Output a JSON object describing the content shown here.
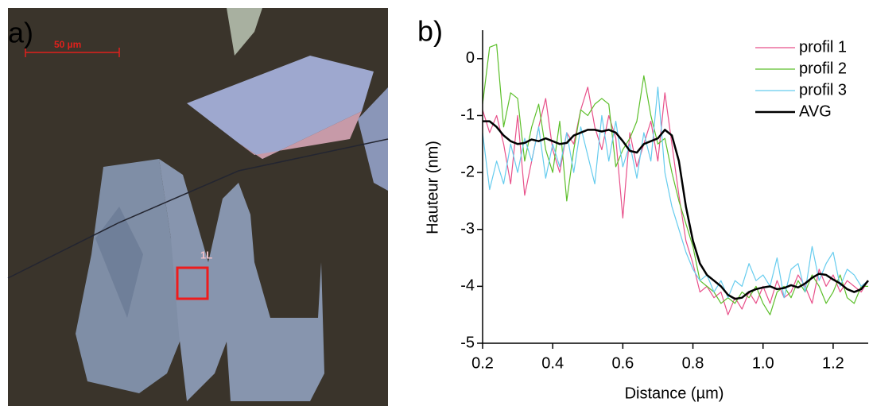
{
  "image_panel": {
    "label": "a)",
    "scale_bar": "50 µm",
    "region_label": "1L"
  },
  "chart_data": {
    "type": "line",
    "panel_label": "b)",
    "x_label": "Distance (µm)",
    "y_label": "Hauteur (nm)",
    "xlim": [
      0.2,
      1.3
    ],
    "ylim": [
      -5,
      0.5
    ],
    "xticks": [
      0.2,
      0.4,
      0.6,
      0.8,
      {
        "value": 1,
        "label": "1.0"
      },
      1.2
    ],
    "yticks": [
      0,
      -1,
      -2,
      -3,
      -4,
      -5
    ],
    "legend": "top-right",
    "x": [
      0.2,
      0.22,
      0.24,
      0.26,
      0.28,
      0.3,
      0.32,
      0.34,
      0.36,
      0.38,
      0.4,
      0.42,
      0.44,
      0.46,
      0.48,
      0.5,
      0.52,
      0.54,
      0.56,
      0.58,
      0.6,
      0.62,
      0.64,
      0.66,
      0.68,
      0.7,
      0.72,
      0.74,
      0.76,
      0.78,
      0.8,
      0.82,
      0.84,
      0.86,
      0.88,
      0.9,
      0.92,
      0.94,
      0.96,
      0.98,
      1,
      1.02,
      1.04,
      1.06,
      1.08,
      1.1,
      1.12,
      1.14,
      1.16,
      1.18,
      1.2,
      1.22,
      1.24,
      1.26,
      1.28,
      1.3
    ],
    "series": [
      {
        "name": "profil 1",
        "color": "#e8508a",
        "width": 1.2,
        "values": [
          -0.9,
          -1.3,
          -1.0,
          -1.5,
          -2.2,
          -1.0,
          -2.4,
          -1.8,
          -1.2,
          -0.7,
          -1.6,
          -2.0,
          -1.3,
          -1.5,
          -0.9,
          -0.5,
          -1.2,
          -1.6,
          -1.0,
          -1.4,
          -2.8,
          -1.3,
          -1.9,
          -1.5,
          -1.1,
          -1.8,
          -0.6,
          -1.5,
          -2.4,
          -3.2,
          -3.6,
          -4.1,
          -4.0,
          -4.2,
          -4.1,
          -4.5,
          -4.2,
          -4.4,
          -4.1,
          -4.3,
          -4.0,
          -4.3,
          -3.9,
          -4.2,
          -4.1,
          -3.8,
          -4.0,
          -4.3,
          -3.7,
          -4.0,
          -3.8,
          -4.1,
          -3.9,
          -4.0,
          -4.1,
          -3.9
        ]
      },
      {
        "name": "profil 2",
        "color": "#5cbf2a",
        "width": 1.2,
        "values": [
          -0.8,
          0.2,
          0.25,
          -1.2,
          -0.6,
          -0.7,
          -1.8,
          -1.2,
          -0.8,
          -1.6,
          -2.0,
          -1.1,
          -2.5,
          -1.6,
          -0.9,
          -1.0,
          -0.8,
          -0.7,
          -0.8,
          -1.9,
          -1.6,
          -1.4,
          -1.1,
          -0.3,
          -1.0,
          -1.5,
          -1.4,
          -2.0,
          -2.5,
          -2.9,
          -3.3,
          -3.9,
          -4.0,
          -4.1,
          -4.3,
          -4.2,
          -4.3,
          -4.1,
          -4.2,
          -4.0,
          -4.3,
          -4.5,
          -4.1,
          -4.0,
          -4.2,
          -3.9,
          -4.1,
          -3.8,
          -4.0,
          -4.3,
          -4.1,
          -3.8,
          -4.2,
          -4.3,
          -4.0,
          -4.0
        ]
      },
      {
        "name": "profil 3",
        "color": "#66ccee",
        "width": 1.2,
        "values": [
          -1.3,
          -2.3,
          -1.8,
          -2.2,
          -1.5,
          -2.0,
          -1.4,
          -1.8,
          -1.2,
          -2.1,
          -1.5,
          -1.9,
          -1.3,
          -2.0,
          -1.2,
          -1.7,
          -2.2,
          -1.0,
          -1.8,
          -1.1,
          -1.9,
          -1.5,
          -2.1,
          -1.3,
          -1.8,
          -0.5,
          -2.0,
          -2.6,
          -3.0,
          -3.4,
          -3.7,
          -3.9,
          -3.8,
          -4.1,
          -3.9,
          -4.2,
          -3.9,
          -4.0,
          -3.6,
          -3.9,
          -3.8,
          -4.0,
          -3.5,
          -4.2,
          -3.7,
          -3.6,
          -4.1,
          -3.3,
          -3.9,
          -3.6,
          -3.4,
          -4.0,
          -3.7,
          -3.8,
          -4.0,
          -3.9
        ]
      },
      {
        "name": "AVG",
        "color": "#000000",
        "width": 2.5,
        "values": [
          -1.1,
          -1.1,
          -1.2,
          -1.35,
          -1.45,
          -1.5,
          -1.48,
          -1.42,
          -1.45,
          -1.4,
          -1.45,
          -1.5,
          -1.48,
          -1.35,
          -1.3,
          -1.25,
          -1.25,
          -1.28,
          -1.25,
          -1.3,
          -1.45,
          -1.62,
          -1.65,
          -1.5,
          -1.45,
          -1.4,
          -1.25,
          -1.35,
          -1.8,
          -2.6,
          -3.2,
          -3.6,
          -3.8,
          -3.9,
          -4.0,
          -4.15,
          -4.22,
          -4.2,
          -4.1,
          -4.05,
          -4.02,
          -4.0,
          -4.05,
          -4.03,
          -3.98,
          -4.02,
          -3.95,
          -3.85,
          -3.78,
          -3.8,
          -3.88,
          -3.95,
          -4.05,
          -4.1,
          -4.05,
          -3.9
        ]
      }
    ]
  }
}
